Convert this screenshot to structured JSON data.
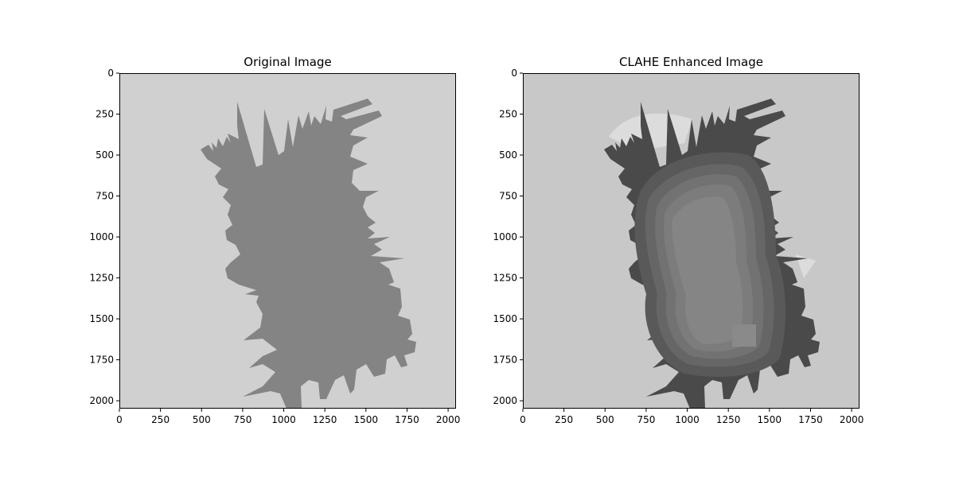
{
  "chart_data": [
    {
      "type": "image",
      "title": "Original Image",
      "xlabel": "",
      "ylabel": "",
      "xlim": [
        0,
        2048
      ],
      "ylim": [
        2048,
        0
      ],
      "x_ticks": [
        "0",
        "250",
        "500",
        "750",
        "1000",
        "1250",
        "1500",
        "1750",
        "2000"
      ],
      "y_ticks": [
        "0",
        "250",
        "500",
        "750",
        "1000",
        "1250",
        "1500",
        "1750",
        "2000"
      ],
      "background_color": "#d0d0d0",
      "foreground_color": "#848484",
      "grid": false
    },
    {
      "type": "image",
      "title": "CLAHE Enhanced Image",
      "xlabel": "",
      "ylabel": "",
      "xlim": [
        0,
        2048
      ],
      "ylim": [
        2048,
        0
      ],
      "x_ticks": [
        "0",
        "250",
        "500",
        "750",
        "1000",
        "1250",
        "1500",
        "1750",
        "2000"
      ],
      "y_ticks": [
        "0",
        "250",
        "500",
        "750",
        "1000",
        "1250",
        "1500",
        "1750",
        "2000"
      ],
      "background_color": "#c8c8c8",
      "foreground_color": "#4a4a4a",
      "inner_color": "#858585",
      "grid": false
    }
  ]
}
